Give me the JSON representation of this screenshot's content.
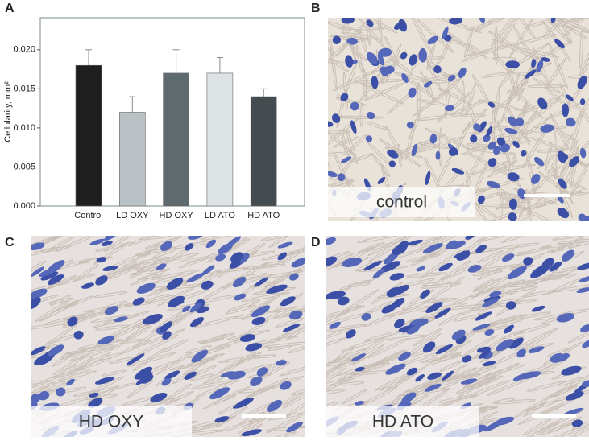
{
  "chart_data": {
    "type": "bar",
    "panel_label": "A",
    "y_label": "Cellularity, mm²",
    "categories": [
      "Control",
      "LD OXY",
      "HD OXY",
      "LD ATO",
      "HD ATO"
    ],
    "values": [
      0.018,
      0.012,
      0.017,
      0.017,
      0.014
    ],
    "errors": [
      0.002,
      0.002,
      0.003,
      0.002,
      0.001
    ],
    "colors": [
      "#1e1e1e",
      "#b9c1c4",
      "#5f6a6e",
      "#dde3e5",
      "#454c50"
    ],
    "ylim": [
      0,
      0.0241
    ],
    "yticks": [
      {
        "value": 0,
        "label": "0.000"
      },
      {
        "value": 0.005,
        "label": "0.005"
      },
      {
        "value": 0.01,
        "label": "0.010"
      },
      {
        "value": 0.015,
        "label": "0.015"
      },
      {
        "value": 0.02,
        "label": "0.020"
      }
    ]
  },
  "panels": [
    {
      "letter": "B",
      "caption": "control"
    },
    {
      "letter": "C",
      "caption": "HD OXY"
    },
    {
      "letter": "D",
      "caption": "HD ATO"
    }
  ]
}
